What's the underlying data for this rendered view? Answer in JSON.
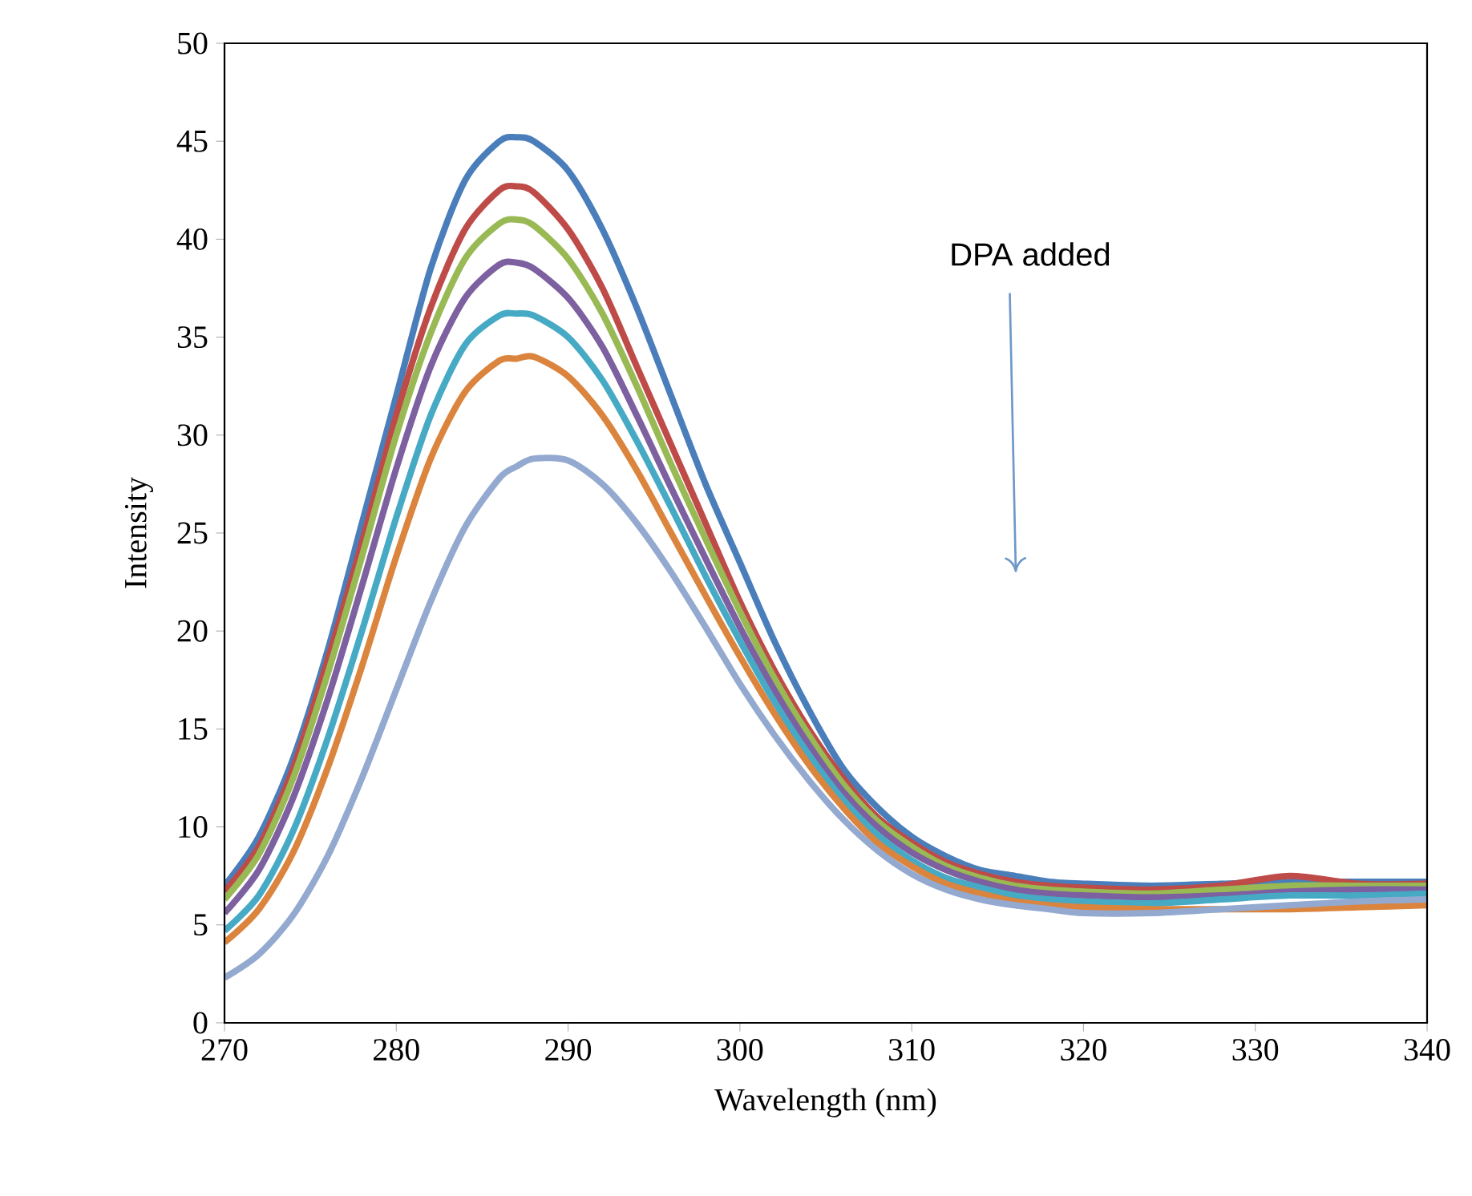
{
  "chart_data": {
    "type": "line",
    "xlabel": "Wavelength (nm)",
    "ylabel": "Intensity",
    "annotations": [
      "DPA added"
    ],
    "x": [
      270,
      272,
      274,
      276,
      278,
      280,
      282,
      284,
      286,
      287,
      288,
      290,
      292,
      294,
      296,
      298,
      300,
      302,
      304,
      306,
      308,
      310,
      312,
      314,
      316,
      318,
      320,
      324,
      328,
      332,
      336,
      340
    ],
    "series": [
      {
        "color": "#4a7ebb",
        "values": [
          7.0,
          9.5,
          13.5,
          19,
          25.5,
          32,
          38.5,
          43,
          45,
          45.2,
          45,
          43.5,
          40.5,
          36.5,
          32,
          27.5,
          23.5,
          19.5,
          16,
          13,
          11,
          9.5,
          8.5,
          7.8,
          7.5,
          7.2,
          7.1,
          7.0,
          7.1,
          7.2,
          7.2,
          7.2
        ]
      },
      {
        "color": "#be4b48",
        "values": [
          6.7,
          9,
          13,
          18.5,
          24.5,
          31,
          36.5,
          40.5,
          42.5,
          42.7,
          42.4,
          40.5,
          37.5,
          33.5,
          29.5,
          25.5,
          21.5,
          18,
          15,
          12.5,
          10.5,
          9.2,
          8.2,
          7.6,
          7.2,
          7.0,
          6.9,
          6.8,
          7.0,
          7.5,
          7.1,
          7.1
        ]
      },
      {
        "color": "#98b954",
        "values": [
          6.3,
          8.6,
          12.5,
          17.8,
          23.8,
          30,
          35.2,
          39,
          40.8,
          41,
          40.7,
          39,
          36.2,
          32.5,
          28.5,
          24.7,
          21,
          17.6,
          14.7,
          12.2,
          10.3,
          9,
          8,
          7.4,
          7.0,
          6.8,
          6.7,
          6.6,
          6.8,
          7.0,
          7.0,
          7.0
        ]
      },
      {
        "color": "#7d60a0",
        "values": [
          5.6,
          7.8,
          11.5,
          16.5,
          22.3,
          28.3,
          33.5,
          37,
          38.7,
          38.8,
          38.5,
          37,
          34.5,
          31,
          27.3,
          23.7,
          20.2,
          17,
          14.2,
          11.8,
          10,
          8.7,
          7.8,
          7.2,
          6.8,
          6.6,
          6.5,
          6.4,
          6.5,
          6.7,
          6.8,
          6.8
        ]
      },
      {
        "color": "#46aac5",
        "values": [
          4.7,
          6.5,
          9.8,
          14.5,
          20,
          25.8,
          31,
          34.6,
          36.1,
          36.2,
          36.1,
          35,
          32.8,
          29.7,
          26.3,
          22.8,
          19.5,
          16.4,
          13.7,
          11.4,
          9.6,
          8.3,
          7.4,
          6.9,
          6.5,
          6.3,
          6.2,
          6.1,
          6.3,
          6.5,
          6.5,
          6.6
        ]
      },
      {
        "color": "#db843d",
        "values": [
          4.1,
          5.8,
          8.7,
          13,
          18.2,
          23.8,
          28.8,
          32.2,
          33.8,
          33.9,
          34,
          33,
          31,
          28.2,
          25,
          21.8,
          18.7,
          15.8,
          13.2,
          11,
          9.2,
          8,
          7.1,
          6.6,
          6.2,
          6.0,
          5.9,
          5.8,
          5.8,
          5.8,
          5.9,
          6.0
        ]
      },
      {
        "color": "#93a9cf",
        "values": [
          2.3,
          3.5,
          5.5,
          8.5,
          12.5,
          17,
          21.5,
          25.3,
          27.8,
          28.4,
          28.8,
          28.7,
          27.5,
          25.5,
          23,
          20.2,
          17.3,
          14.7,
          12.4,
          10.4,
          8.8,
          7.6,
          6.8,
          6.3,
          6.0,
          5.8,
          5.6,
          5.6,
          5.8,
          6.0,
          6.2,
          6.3
        ]
      }
    ],
    "xlim": [
      270,
      340
    ],
    "xticks": [
      270,
      280,
      290,
      300,
      310,
      320,
      330,
      340
    ],
    "ylim": [
      0,
      50
    ],
    "yticks": [
      0,
      5,
      10,
      15,
      20,
      25,
      30,
      35,
      40,
      45,
      50
    ],
    "grid": false,
    "marker": "none",
    "line_style": "solid"
  }
}
